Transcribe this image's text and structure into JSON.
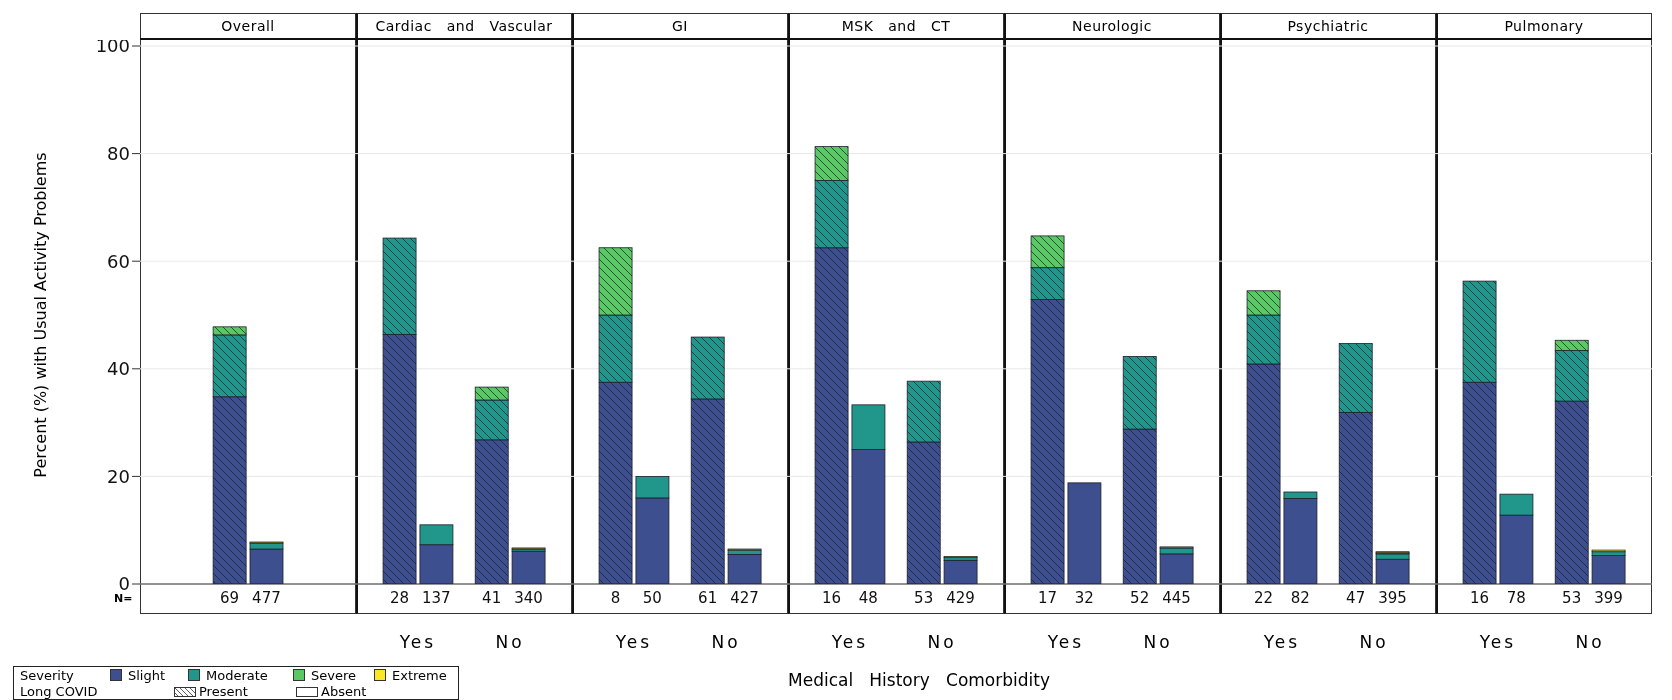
{
  "chart_data": [
    {
      "type": "bar",
      "title": "Overall",
      "ylabel": "Percent (%) with Usual Activity Problems",
      "categories": [
        "69",
        "477"
      ],
      "stacked": true,
      "ylim": [
        0,
        100
      ],
      "yticks": [
        0,
        20,
        40,
        60,
        80,
        100
      ],
      "grid": "y",
      "legend": "bottom",
      "legend_title": "Severity",
      "annotations": [
        "N=",
        "Long COVID",
        "Present",
        "Absent"
      ],
      "series": [
        {
          "name": "Slight",
          "color": "#3d4f8e",
          "values": [
            34.8,
            6.5
          ]
        },
        {
          "name": "Moderate",
          "color": "#21968a",
          "values": [
            11.5,
            1.1
          ]
        },
        {
          "name": "Severe",
          "color": "#5ac864",
          "values": [
            1.5,
            0
          ]
        },
        {
          "name": "Extreme",
          "color": "#fde725",
          "values": [
            0,
            0.2
          ]
        }
      ]
    },
    {
      "type": "bar",
      "title": "Cardiac   and   Vascular",
      "categories": [
        "28",
        "137",
        "41",
        "340"
      ],
      "stacked": true,
      "ylim": [
        0,
        100
      ],
      "yticks": [
        0,
        20,
        40,
        60,
        80,
        100
      ],
      "grid": "y",
      "tick_labels": "x",
      "annotations": [
        "Yes",
        "No"
      ],
      "series": [
        {
          "color": "#3d4f8e",
          "values": [
            46.4,
            7.3,
            26.8,
            6.1
          ]
        },
        {
          "color": "#21968a",
          "values": [
            17.9,
            3.7,
            7.4,
            0.4
          ]
        },
        {
          "color": "#5ac864",
          "values": [
            0,
            0,
            2.4,
            0
          ]
        },
        {
          "color": "#fde725",
          "values": [
            0,
            0,
            0,
            0.2
          ]
        }
      ]
    },
    {
      "type": "bar",
      "title": "GI",
      "categories": [
        "8",
        "50",
        "61",
        "427"
      ],
      "stacked": true,
      "ylim": [
        0,
        100
      ],
      "yticks": [
        0,
        20,
        40,
        60,
        80,
        100
      ],
      "grid": "y",
      "tick_labels": "x",
      "annotations": [
        "Yes",
        "No"
      ],
      "series": [
        {
          "color": "#3d4f8e",
          "values": [
            37.5,
            16.0,
            34.4,
            5.5
          ]
        },
        {
          "color": "#21968a",
          "values": [
            12.5,
            4.0,
            11.5,
            0.8
          ]
        },
        {
          "color": "#5ac864",
          "values": [
            12.5,
            0,
            0,
            0
          ]
        },
        {
          "color": "#fde725",
          "values": [
            0,
            0,
            0,
            0.2
          ]
        }
      ]
    },
    {
      "type": "bar",
      "title": "MSK   and   CT",
      "xlabel": "Medical   History   Comorbidity",
      "categories": [
        "16",
        "48",
        "53",
        "429"
      ],
      "stacked": true,
      "ylim": [
        0,
        100
      ],
      "yticks": [
        0,
        20,
        40,
        60,
        80,
        100
      ],
      "grid": "y",
      "tick_labels": "x",
      "annotations": [
        "Yes",
        "No"
      ],
      "series": [
        {
          "color": "#3d4f8e",
          "values": [
            62.5,
            25.0,
            26.4,
            4.4
          ]
        },
        {
          "color": "#21968a",
          "values": [
            12.5,
            8.3,
            11.3,
            0.5
          ]
        },
        {
          "color": "#5ac864",
          "values": [
            6.3,
            0,
            0,
            0
          ]
        },
        {
          "color": "#fde725",
          "values": [
            0,
            0,
            0,
            0.2
          ]
        }
      ]
    },
    {
      "type": "bar",
      "title": "Neurologic",
      "categories": [
        "17",
        "32",
        "52",
        "445"
      ],
      "stacked": true,
      "ylim": [
        0,
        100
      ],
      "yticks": [
        0,
        20,
        40,
        60,
        80,
        100
      ],
      "grid": "y",
      "tick_labels": "x",
      "annotations": [
        "Yes",
        "No"
      ],
      "series": [
        {
          "color": "#3d4f8e",
          "values": [
            52.9,
            18.8,
            28.8,
            5.6
          ]
        },
        {
          "color": "#21968a",
          "values": [
            5.9,
            0,
            13.5,
            1.1
          ]
        },
        {
          "color": "#5ac864",
          "values": [
            5.9,
            0,
            0,
            0
          ]
        },
        {
          "color": "#fde725",
          "values": [
            0,
            0,
            0,
            0.2
          ]
        }
      ]
    },
    {
      "type": "bar",
      "title": "Psychiatric",
      "categories": [
        "22",
        "82",
        "47",
        "395"
      ],
      "stacked": true,
      "ylim": [
        0,
        100
      ],
      "yticks": [
        0,
        20,
        40,
        60,
        80,
        100
      ],
      "grid": "y",
      "tick_labels": "x",
      "annotations": [
        "Yes",
        "No"
      ],
      "series": [
        {
          "color": "#3d4f8e",
          "values": [
            40.9,
            15.9,
            31.9,
            4.6
          ]
        },
        {
          "color": "#21968a",
          "values": [
            9.1,
            1.2,
            12.8,
            1.0
          ]
        },
        {
          "color": "#5ac864",
          "values": [
            4.5,
            0,
            0,
            0.2
          ]
        },
        {
          "color": "#fde725",
          "values": [
            0,
            0,
            0,
            0.2
          ]
        }
      ]
    },
    {
      "type": "bar",
      "title": "Pulmonary",
      "categories": [
        "16",
        "78",
        "53",
        "399"
      ],
      "stacked": true,
      "ylim": [
        0,
        100
      ],
      "yticks": [
        0,
        20,
        40,
        60,
        80,
        100
      ],
      "grid": "y",
      "tick_labels": "x",
      "annotations": [
        "Yes",
        "No"
      ],
      "series": [
        {
          "color": "#3d4f8e",
          "values": [
            37.5,
            12.8,
            34.0,
            5.3
          ]
        },
        {
          "color": "#21968a",
          "values": [
            18.8,
            3.9,
            9.4,
            0.7
          ]
        },
        {
          "color": "#5ac864",
          "values": [
            0,
            0,
            1.9,
            0
          ]
        },
        {
          "color": "#fde725",
          "values": [
            0,
            0,
            0,
            0.3
          ]
        }
      ]
    }
  ]
}
